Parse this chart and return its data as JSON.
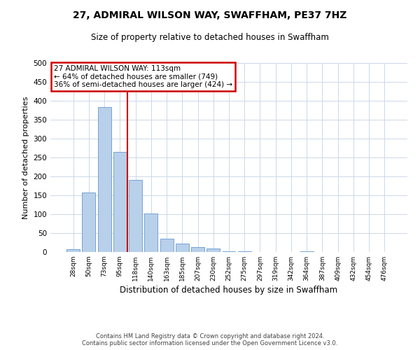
{
  "title": "27, ADMIRAL WILSON WAY, SWAFFHAM, PE37 7HZ",
  "subtitle": "Size of property relative to detached houses in Swaffham",
  "xlabel": "Distribution of detached houses by size in Swaffham",
  "ylabel": "Number of detached properties",
  "bar_labels": [
    "28sqm",
    "50sqm",
    "73sqm",
    "95sqm",
    "118sqm",
    "140sqm",
    "163sqm",
    "185sqm",
    "207sqm",
    "230sqm",
    "252sqm",
    "275sqm",
    "297sqm",
    "319sqm",
    "342sqm",
    "364sqm",
    "387sqm",
    "409sqm",
    "432sqm",
    "454sqm",
    "476sqm"
  ],
  "bar_values": [
    7,
    157,
    383,
    265,
    190,
    102,
    36,
    22,
    13,
    9,
    2,
    2,
    0,
    0,
    0,
    2,
    0,
    0,
    0,
    0,
    0
  ],
  "bar_color": "#b8d0ea",
  "bar_edge_color": "#6699cc",
  "vline_color": "#cc0000",
  "ylim": [
    0,
    500
  ],
  "yticks": [
    0,
    50,
    100,
    150,
    200,
    250,
    300,
    350,
    400,
    450,
    500
  ],
  "annotation_title": "27 ADMIRAL WILSON WAY: 113sqm",
  "annotation_line1": "← 64% of detached houses are smaller (749)",
  "annotation_line2": "36% of semi-detached houses are larger (424) →",
  "annotation_box_color": "#cc0000",
  "footer_line1": "Contains HM Land Registry data © Crown copyright and database right 2024.",
  "footer_line2": "Contains public sector information licensed under the Open Government Licence v3.0.",
  "background_color": "#ffffff",
  "grid_color": "#cdd8e8"
}
